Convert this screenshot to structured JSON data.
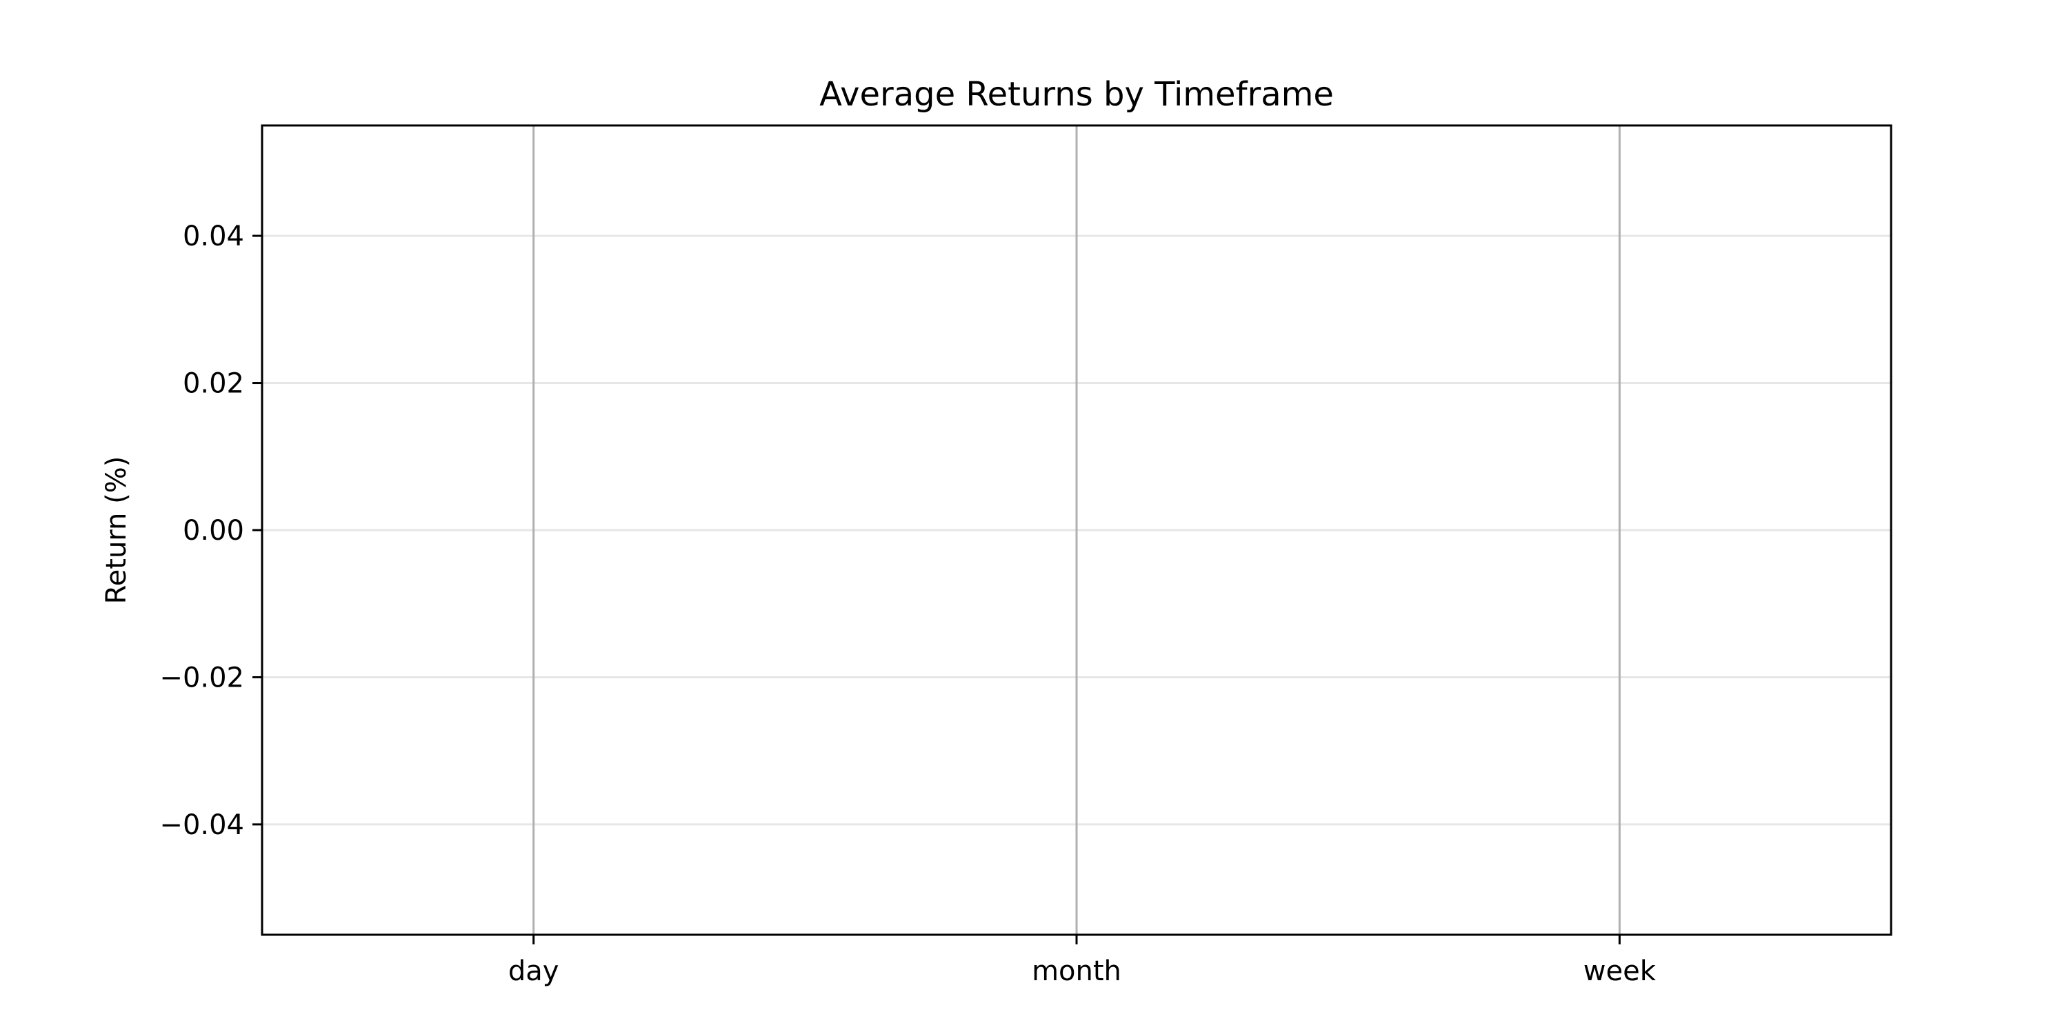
{
  "chart_data": {
    "type": "line",
    "title": "Average Returns by Timeframe",
    "xlabel": "",
    "ylabel": "Return (%)",
    "categories": [
      "day",
      "month",
      "week"
    ],
    "series": [
      {
        "values": [
          null,
          null,
          null
        ]
      }
    ],
    "ylim": [
      -0.055,
      0.055
    ],
    "yticks": [
      0.04,
      0.02,
      0.0,
      -0.02,
      -0.04
    ],
    "ytick_labels": [
      "0.04",
      "0.02",
      "0.00",
      "−0.02",
      "−0.04"
    ],
    "grid": {
      "horizontal": true,
      "horizontal_color": "#e6e6e6",
      "vertical_at_categories": true,
      "vertical_color": "#b0b0b0"
    },
    "colors": {
      "frame": "#000000",
      "background": "#ffffff"
    }
  }
}
